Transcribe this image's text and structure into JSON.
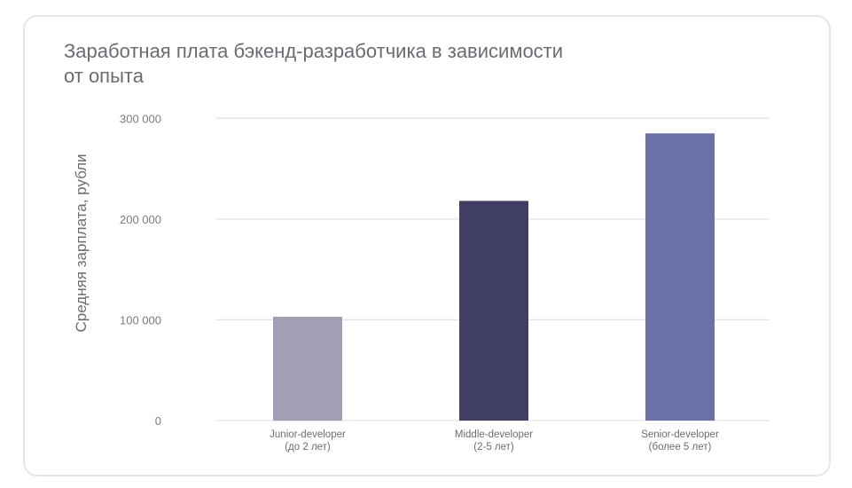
{
  "chart_data": {
    "type": "bar",
    "title": "Заработная плата бэкенд-разработчика в зависимости от опыта",
    "title_lines": [
      "Заработная плата бэкенд-разработчика в зависимости",
      "от опыта"
    ],
    "xlabel": "",
    "ylabel": "Средняя зарплата, рубли",
    "ylim": [
      0,
      300000
    ],
    "yticks": [
      0,
      100000,
      200000,
      300000
    ],
    "ytick_labels": [
      "0",
      "100 000",
      "200 000",
      "300 000"
    ],
    "grid": true,
    "categories": [
      [
        "Junior-developer",
        "(до 2 лет)"
      ],
      [
        "Middle-developer",
        "(2-5 лет)"
      ],
      [
        "Senior-developer",
        "(более 5 лет)"
      ]
    ],
    "values": [
      103000,
      218000,
      285000
    ],
    "colors": [
      "#a09fb4",
      "#403f63",
      "#6871a8"
    ]
  }
}
